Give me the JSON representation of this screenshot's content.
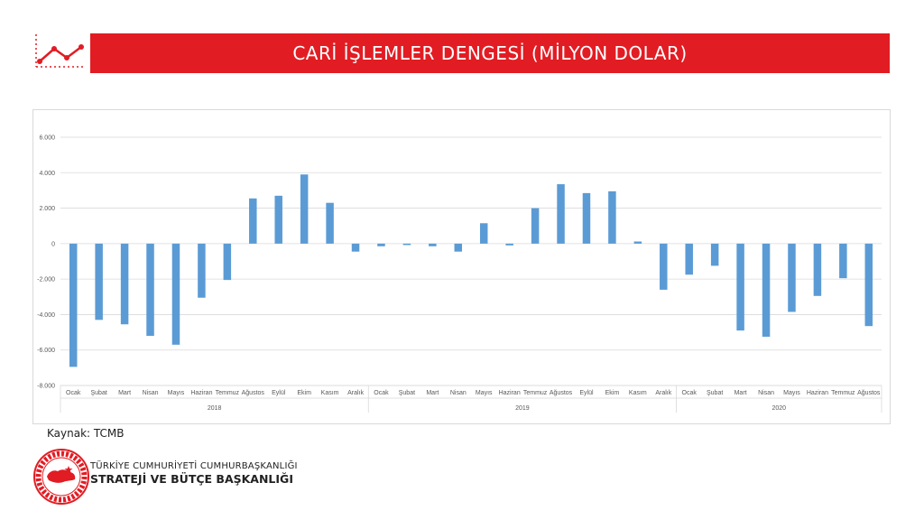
{
  "header": {
    "title": "CARİ İŞLEMLER DENGESİ (MİLYON DOLAR)"
  },
  "footer": {
    "source": "Kaynak: TCMB",
    "org_line1": "TÜRKİYE CUMHURİYETİ CUMHURBAŞKANLIĞI",
    "org_line2": "STRATEJİ VE BÜTÇE BAŞKANLIĞI",
    "seal_text": "T.C. CUMHURBAŞKANLIĞI STRATEJİ VE BÜTÇE BAŞKANLIĞI"
  },
  "colors": {
    "accent": "#e21c23",
    "bar": "#5b9bd5",
    "grid": "#d9d9d9"
  },
  "chart_data": {
    "type": "bar",
    "title": "",
    "xlabel": "",
    "ylabel": "",
    "ylim": [
      -8000,
      6000
    ],
    "yticks": [
      "6.000",
      "4.000",
      "2.000",
      "0",
      "-2.000",
      "-4.000",
      "-6.000",
      "-8.000"
    ],
    "ytick_values": [
      6000,
      4000,
      2000,
      0,
      -2000,
      -4000,
      -6000,
      -8000
    ],
    "groups": [
      {
        "year": "2018",
        "months": [
          "Ocak",
          "Şubat",
          "Mart",
          "Nisan",
          "Mayıs",
          "Haziran",
          "Temmuz",
          "Ağustos",
          "Eylül",
          "Ekim",
          "Kasım",
          "Aralık"
        ]
      },
      {
        "year": "2019",
        "months": [
          "Ocak",
          "Şubat",
          "Mart",
          "Nisan",
          "Mayıs",
          "Haziran",
          "Temmuz",
          "Ağustos",
          "Eylül",
          "Ekim",
          "Kasım",
          "Aralık"
        ]
      },
      {
        "year": "2020",
        "months": [
          "Ocak",
          "Şubat",
          "Mart",
          "Nisan",
          "Mayıs",
          "Haziran",
          "Temmuz",
          "Ağustos"
        ]
      }
    ],
    "values": [
      -6950,
      -4300,
      -4550,
      -5200,
      -5700,
      -3050,
      -2050,
      2550,
      2700,
      3900,
      2300,
      -450,
      -150,
      -80,
      -150,
      -450,
      1150,
      -100,
      2000,
      3350,
      2850,
      2950,
      120,
      -2600,
      -1750,
      -1250,
      -4900,
      -5250,
      -3850,
      -2950,
      -1950,
      -4650
    ],
    "grid": true,
    "legend": "none"
  }
}
